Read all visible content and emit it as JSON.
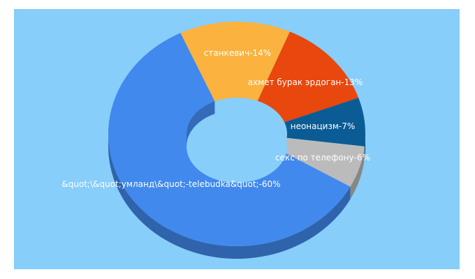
{
  "chart_data": {
    "type": "pie",
    "style": "3d-donut",
    "background": "#87CEFA",
    "slices": [
      {
        "label": "&quot;\\&quot;умланд\\&quot;-telebudka&quot;",
        "value": 60,
        "display": "&quot;\\&quot;умланд\\&quot;-telebudka&quot;-60%",
        "color": "#4189ED",
        "label_color": "#ffffff"
      },
      {
        "label": "станкевич",
        "value": 14,
        "display": "станкевич-14%",
        "color": "#FBB23E",
        "label_color": "#ffffff"
      },
      {
        "label": "ахмет бурак эрдоган",
        "value": 13,
        "display": "ахмет бурак эрдоган-13%",
        "color": "#E8470E",
        "label_color": "#ffffff"
      },
      {
        "label": "неонацизм",
        "value": 7,
        "display": "неонацизм-7%",
        "color": "#0B5C95",
        "label_color": "#ffffff"
      },
      {
        "label": "секс по телефону",
        "value": 6,
        "display": "секс по телефону-6%",
        "color": "#BBBBBB",
        "label_color": "#ffffff"
      }
    ]
  }
}
